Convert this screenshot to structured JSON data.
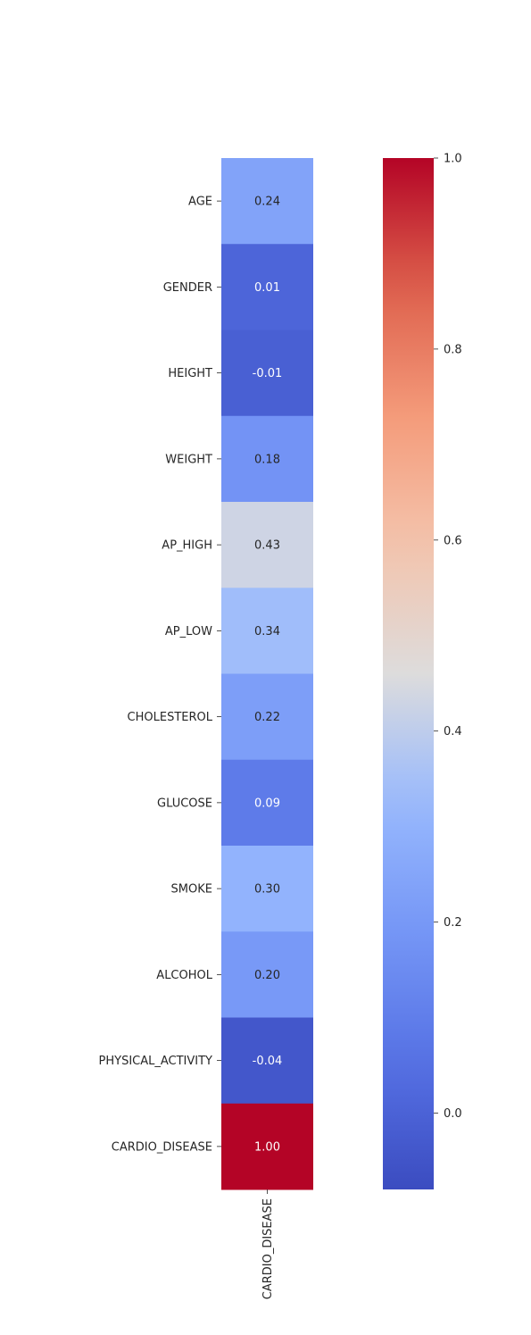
{
  "chart_data": {
    "type": "heatmap",
    "title": "",
    "xlabel": "",
    "ylabel": "",
    "columns": [
      "CARDIO_DISEASE"
    ],
    "rows": [
      "AGE",
      "GENDER",
      "HEIGHT",
      "WEIGHT",
      "AP_HIGH",
      "AP_LOW",
      "CHOLESTEROL",
      "GLUCOSE",
      "SMOKE",
      "ALCOHOL",
      "PHYSICAL_ACTIVITY",
      "CARDIO_DISEASE"
    ],
    "values": [
      0.24,
      0.01,
      -0.01,
      0.18,
      0.43,
      0.34,
      0.22,
      0.09,
      0.3,
      0.2,
      -0.04,
      1.0
    ],
    "annotations": [
      "0.24",
      "0.01",
      "-0.01",
      "0.18",
      "0.43",
      "0.34",
      "0.22",
      "0.09",
      "0.30",
      "0.20",
      "-0.04",
      "1.00"
    ],
    "colormap": "coolwarm",
    "color_range": [
      -0.08,
      1.0
    ],
    "colorbar": {
      "ticks": [
        0.0,
        0.2,
        0.4,
        0.6,
        0.8,
        1.0
      ],
      "tick_labels": [
        "0.0",
        "0.2",
        "0.4",
        "0.6",
        "0.8",
        "1.0"
      ],
      "placement": "right"
    },
    "grid": false
  }
}
